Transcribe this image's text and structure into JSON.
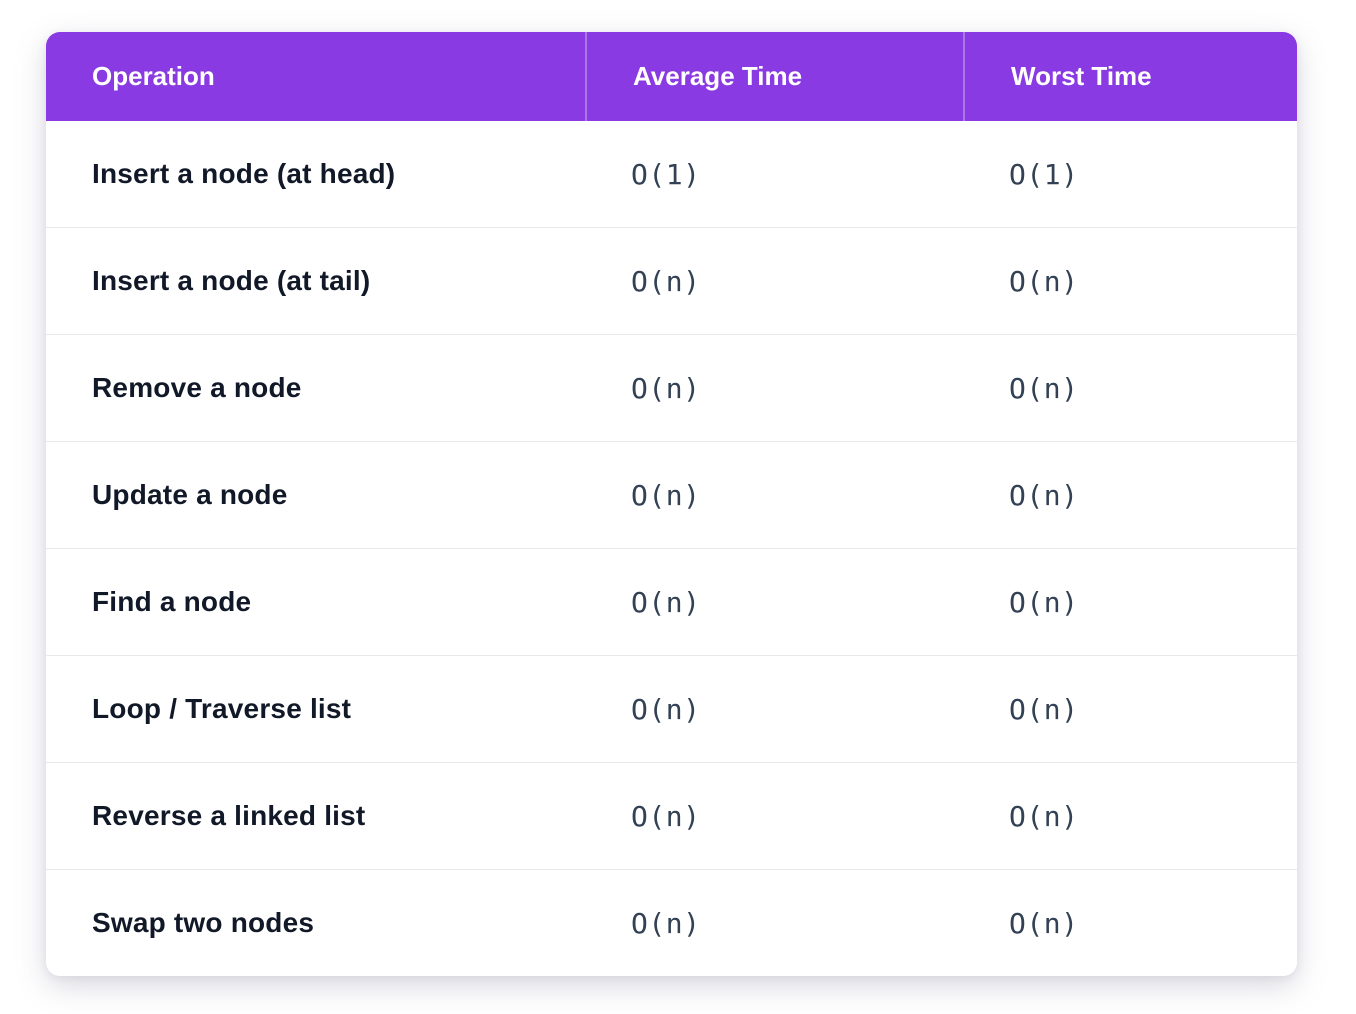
{
  "table": {
    "header": {
      "operation": "Operation",
      "average": "Average Time",
      "worst": "Worst Time"
    },
    "rows": [
      {
        "operation": "Insert a node (at head)",
        "average": "O(1)",
        "worst": "O(1)"
      },
      {
        "operation": "Insert a node (at tail)",
        "average": "O(n)",
        "worst": "O(n)"
      },
      {
        "operation": "Remove a node",
        "average": "O(n)",
        "worst": "O(n)"
      },
      {
        "operation": "Update a node",
        "average": "O(n)",
        "worst": "O(n)"
      },
      {
        "operation": "Find a node",
        "average": "O(n)",
        "worst": "O(n)"
      },
      {
        "operation": "Loop / Traverse list",
        "average": "O(n)",
        "worst": "O(n)"
      },
      {
        "operation": "Reverse a linked list",
        "average": "O(n)",
        "worst": "O(n)"
      },
      {
        "operation": "Swap two nodes",
        "average": "O(n)",
        "worst": "O(n)"
      }
    ]
  },
  "chart_data": {
    "type": "table",
    "title": "",
    "columns": [
      "Operation",
      "Average Time",
      "Worst Time"
    ],
    "rows": [
      [
        "Insert a node (at head)",
        "O(1)",
        "O(1)"
      ],
      [
        "Insert a node (at tail)",
        "O(n)",
        "O(n)"
      ],
      [
        "Remove a node",
        "O(n)",
        "O(n)"
      ],
      [
        "Update a node",
        "O(n)",
        "O(n)"
      ],
      [
        "Find a node",
        "O(n)",
        "O(n)"
      ],
      [
        "Loop / Traverse list",
        "O(n)",
        "O(n)"
      ],
      [
        "Reverse a linked list",
        "O(n)",
        "O(n)"
      ],
      [
        "Swap two nodes",
        "O(n)",
        "O(n)"
      ]
    ]
  },
  "colors": {
    "header_bg": "#8a3ae2",
    "header_divider": "rgba(255,255,255,0.30)",
    "header_text": "#ffffff",
    "row_label_text": "#111827",
    "time_value_text": "#334155",
    "row_divider": "#e8e9ed",
    "card_bg": "#ffffff",
    "page_bg": "#ffffff"
  }
}
